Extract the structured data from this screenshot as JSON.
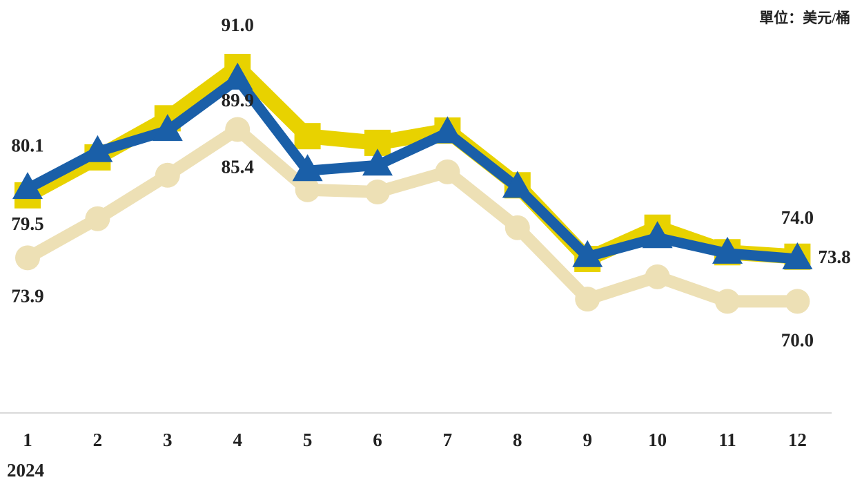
{
  "chart_data": {
    "type": "line",
    "unit": "單位：美元/桶",
    "categories": [
      "1",
      "2",
      "3",
      "4",
      "5",
      "6",
      "7",
      "8",
      "9",
      "10",
      "11",
      "12"
    ],
    "xlabel": "2024",
    "ylim": [
      60,
      97
    ],
    "series": [
      {
        "color": "#ede0b5",
        "marker": "circle",
        "values": [
          73.9,
          77.4,
          81.3,
          85.4,
          80.0,
          79.8,
          81.6,
          76.6,
          70.2,
          72.2,
          70.0,
          70.0
        ],
        "value_labels": [
          "73.9",
          null,
          null,
          "85.4",
          null,
          null,
          null,
          null,
          null,
          null,
          null,
          "70.0"
        ]
      },
      {
        "color": "#e8d200",
        "marker": "square",
        "values": [
          79.5,
          82.9,
          86.4,
          91.0,
          84.8,
          84.2,
          85.3,
          80.4,
          73.8,
          76.6,
          74.4,
          74.0
        ],
        "value_labels": [
          "79.5",
          null,
          null,
          "91.0",
          null,
          null,
          null,
          null,
          null,
          null,
          null,
          "74.0"
        ]
      },
      {
        "color": "#1a5fa8",
        "marker": "triangle",
        "values": [
          80.1,
          83.4,
          85.3,
          89.9,
          81.7,
          82.2,
          85.1,
          80.2,
          74.0,
          75.7,
          74.3,
          73.8
        ],
        "value_labels": [
          "80.1",
          null,
          null,
          "89.9",
          null,
          null,
          null,
          null,
          null,
          null,
          null,
          "73.8"
        ]
      }
    ]
  }
}
